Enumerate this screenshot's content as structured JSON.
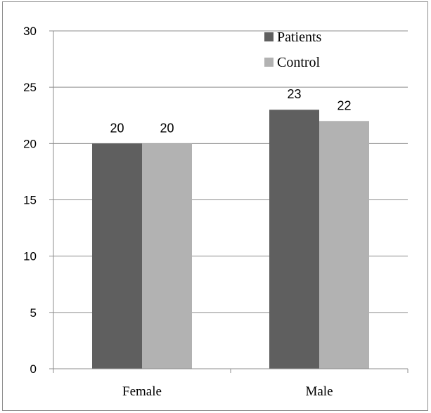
{
  "chart_data": {
    "type": "bar",
    "categories": [
      "Female",
      "Male"
    ],
    "series": [
      {
        "name": "Patients",
        "values": [
          20,
          23
        ],
        "color": "#5f5f5f"
      },
      {
        "name": "Control",
        "values": [
          20,
          22
        ],
        "color": "#b2b2b2"
      }
    ],
    "ylim": [
      0,
      30
    ],
    "yticks": [
      0,
      5,
      10,
      15,
      20,
      25,
      30
    ],
    "grid": true,
    "legend": "top-right",
    "data_labels": true
  }
}
